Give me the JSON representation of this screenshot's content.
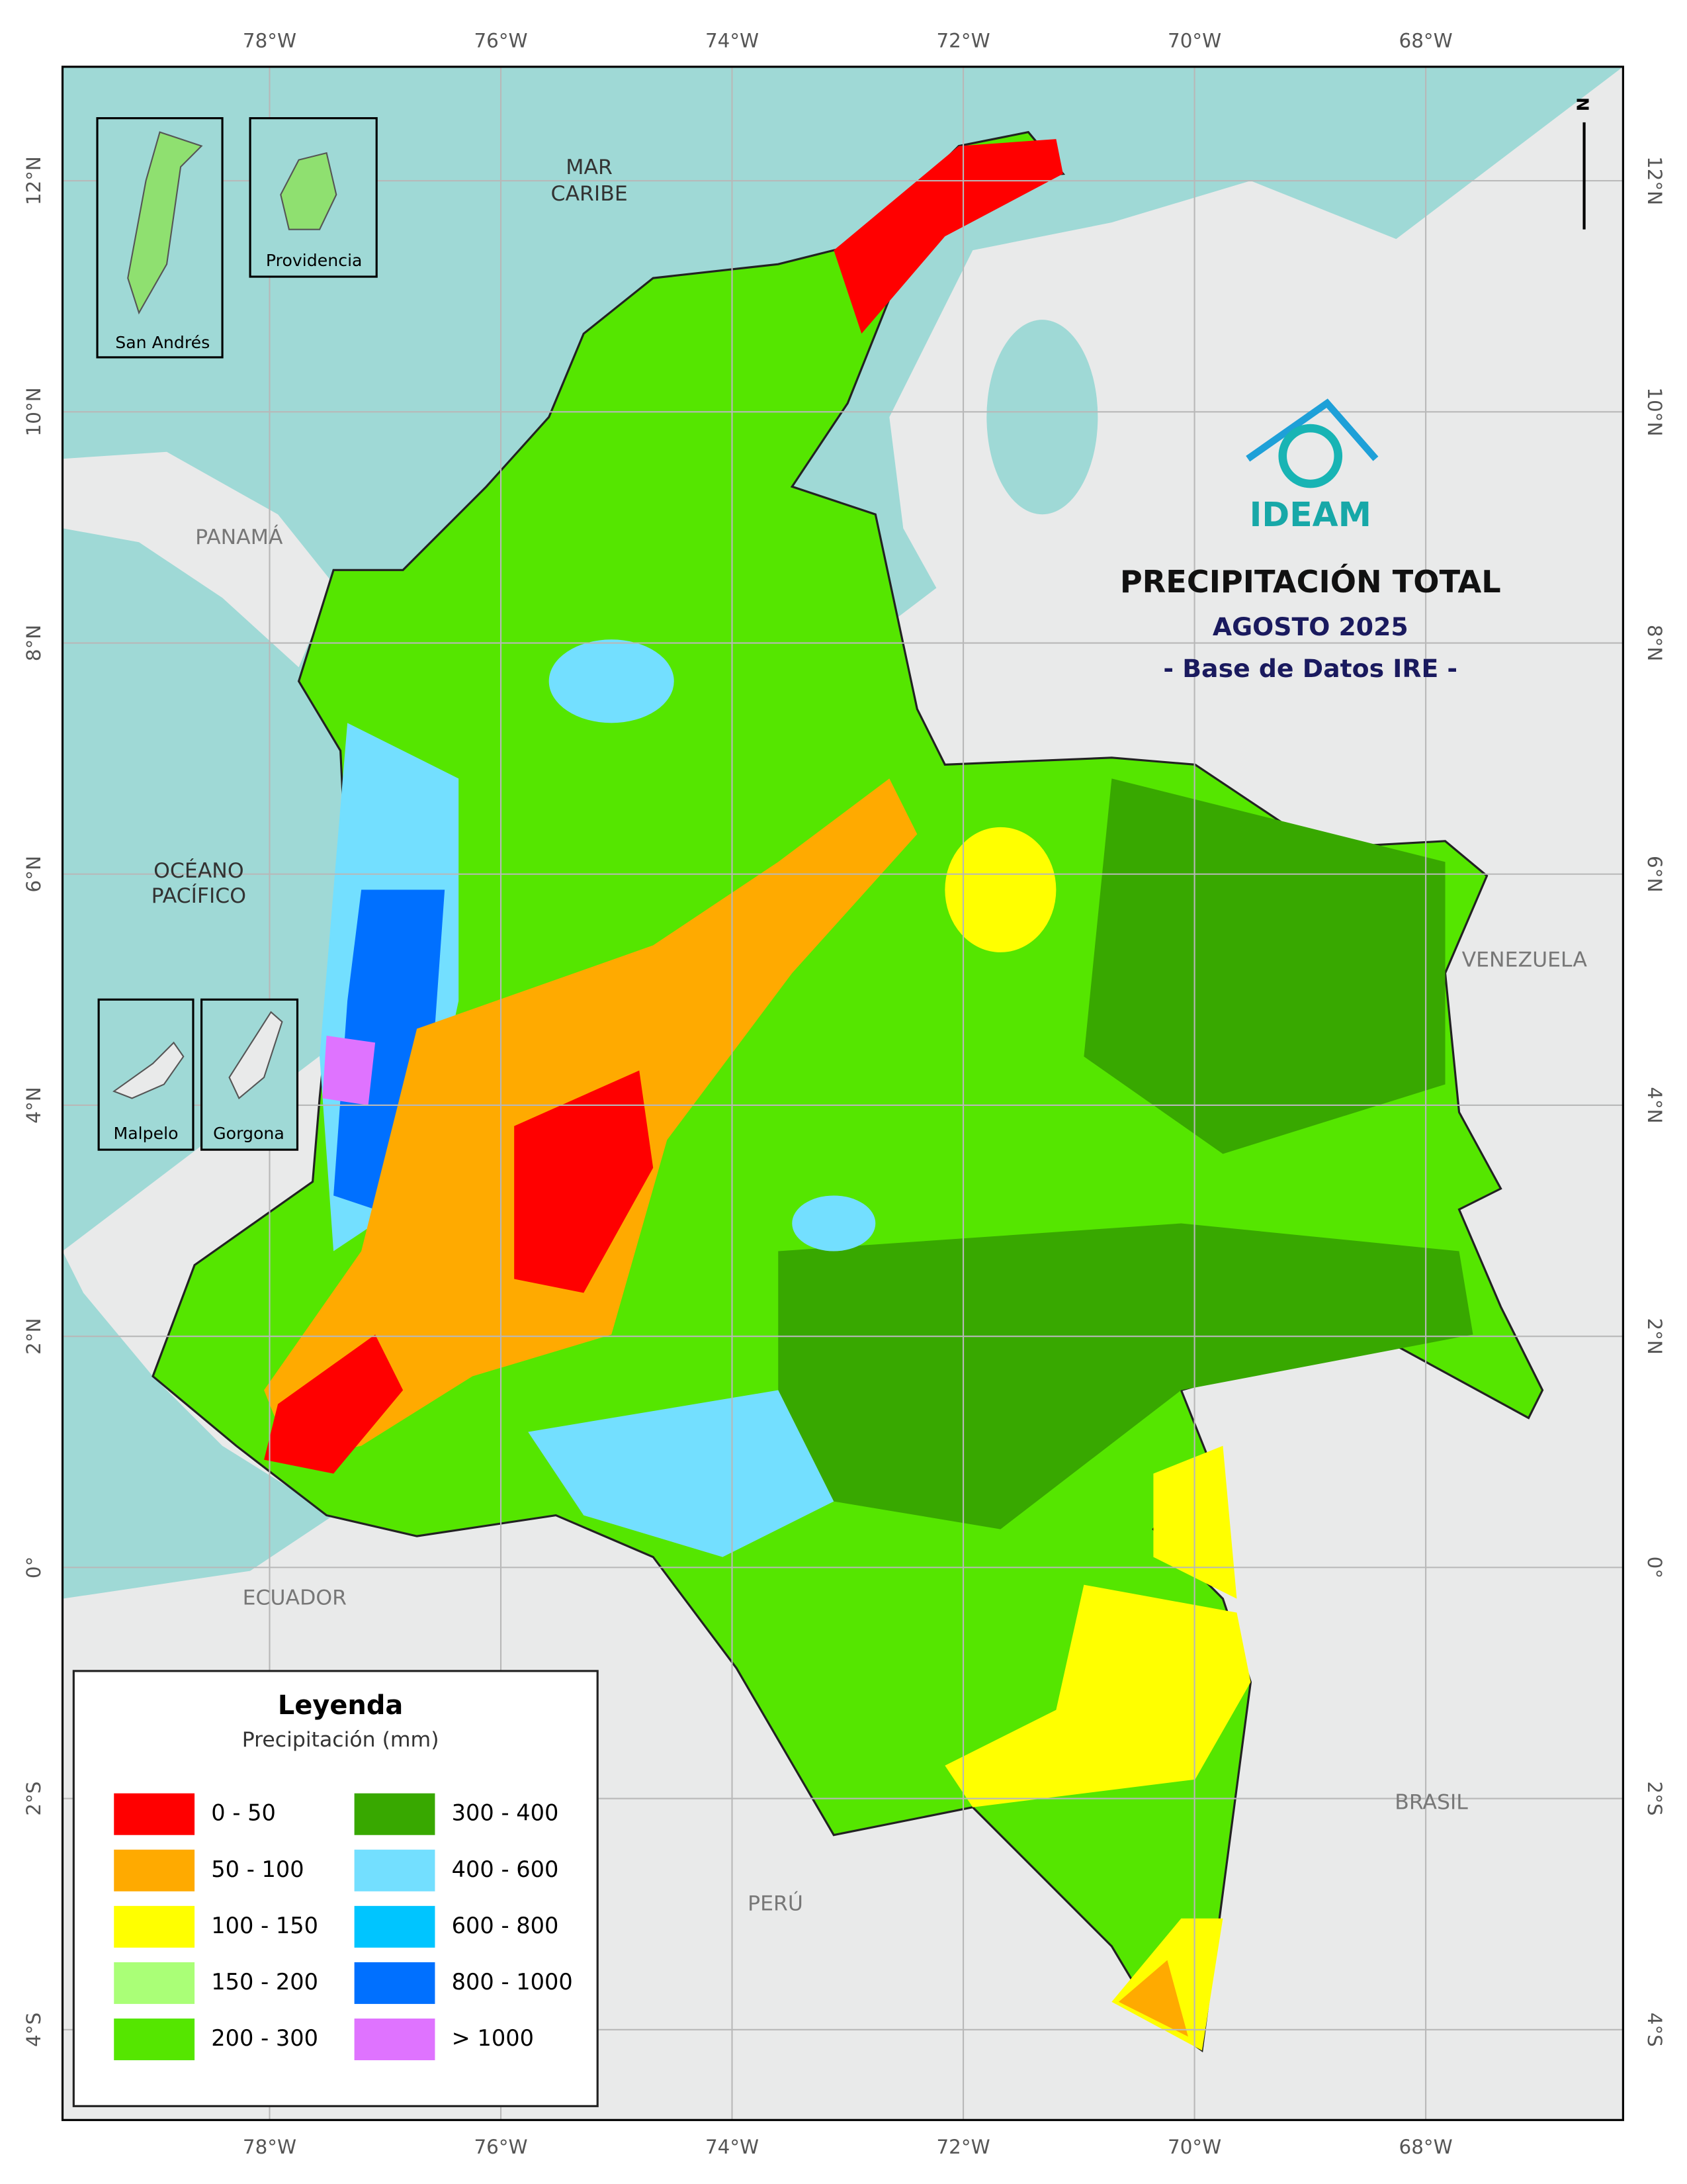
{
  "title": "PRECIPITACIÓN TOTAL",
  "subtitle": "AGOSTO 2025",
  "source": "- Base de Datos IRE -",
  "logo": "IDEAM",
  "north": "N",
  "grid": {
    "lon_labels": [
      "78°W",
      "76°W",
      "74°W",
      "72°W",
      "70°W",
      "68°W"
    ],
    "lat_labels": [
      "12°N",
      "10°N",
      "8°N",
      "6°N",
      "4°N",
      "2°N",
      "0°",
      "2°S",
      "4°S"
    ]
  },
  "places": {
    "caribbean": [
      "MAR",
      "CARIBE"
    ],
    "pacific": [
      "OCÉANO",
      "PACÍFICO"
    ],
    "panama": "PANAMÁ",
    "venezuela": "VENEZUELA",
    "ecuador": "ECUADOR",
    "brasil": "BRASIL",
    "peru": "PERÚ"
  },
  "insets": [
    "San Andrés",
    "Providencia",
    "Malpelo",
    "Gorgona"
  ],
  "legend": {
    "title": "Leyenda",
    "subtitle": "Precipitación (mm)",
    "items": [
      {
        "label": "0 - 50",
        "color": "#ff0000"
      },
      {
        "label": "50 - 100",
        "color": "#ffaa00"
      },
      {
        "label": "100 - 150",
        "color": "#ffff00"
      },
      {
        "label": "150 - 200",
        "color": "#aaff77"
      },
      {
        "label": "200 - 300",
        "color": "#55e600"
      },
      {
        "label": "300 - 400",
        "color": "#38a800"
      },
      {
        "label": "400 - 600",
        "color": "#73dfff"
      },
      {
        "label": "600 - 800",
        "color": "#00c5ff"
      },
      {
        "label": "800 - 1000",
        "color": "#0070ff"
      },
      {
        "label": "> 1000",
        "color": "#df73ff"
      }
    ]
  }
}
